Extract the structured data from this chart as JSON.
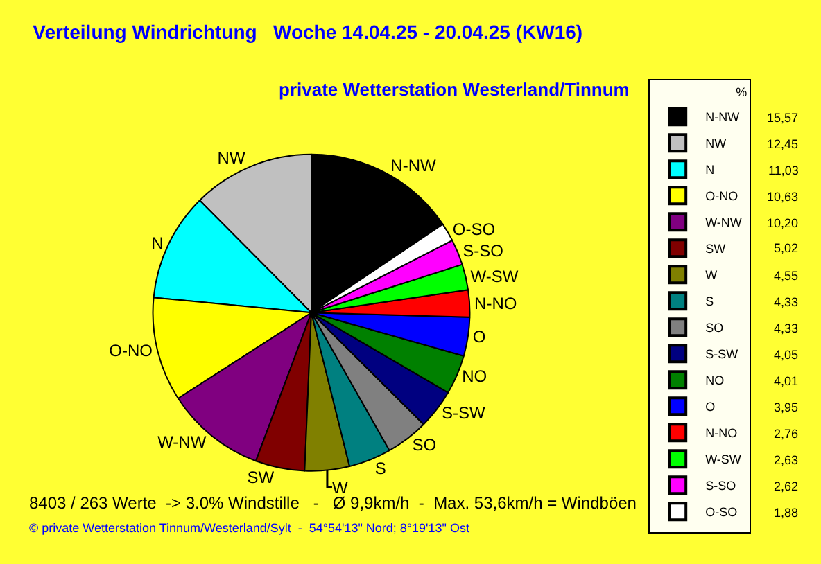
{
  "chart_data": {
    "type": "pie",
    "title": "Verteilung Windrichtung   Woche 14.04.25 - 20.04.25 (KW16)",
    "subtitle": "private Wetterstation Westerland/Tinnum",
    "categories": [
      "N-NW",
      "NW",
      "N",
      "O-NO",
      "W-NW",
      "SW",
      "W",
      "S",
      "SO",
      "S-SW",
      "NO",
      "O",
      "N-NO",
      "W-SW",
      "S-SO",
      "O-SO"
    ],
    "values": [
      15.57,
      12.45,
      11.03,
      10.63,
      10.2,
      5.02,
      4.55,
      4.33,
      4.33,
      4.05,
      4.01,
      3.95,
      2.76,
      2.63,
      2.62,
      1.88
    ],
    "value_labels": [
      "15,57",
      "12,45",
      "11,03",
      "10,63",
      "10,20",
      "5,02",
      "4,55",
      "4,33",
      "4,33",
      "4,05",
      "4,01",
      "3,95",
      "2,76",
      "2,63",
      "2,62",
      "1,88"
    ],
    "colors": [
      "#000000",
      "#c0c0c0",
      "#00ffff",
      "#ffff00",
      "#800080",
      "#800000",
      "#808000",
      "#008080",
      "#808080",
      "#000080",
      "#008000",
      "#0000ff",
      "#ff0000",
      "#00ff00",
      "#ff00ff",
      "#ffffff"
    ],
    "legend": "right",
    "legend_title": "%",
    "annotations": [
      "8403 / 263 Werte  -> 3.0% Windstille   -   Ø 9,9km/h  -  Max. 53,6km/h = Windböen",
      "© private Wetterstation Tinnum/Westerland/Sylt  -  54°54'13\" Nord; 8°19'13\" Ost"
    ]
  }
}
